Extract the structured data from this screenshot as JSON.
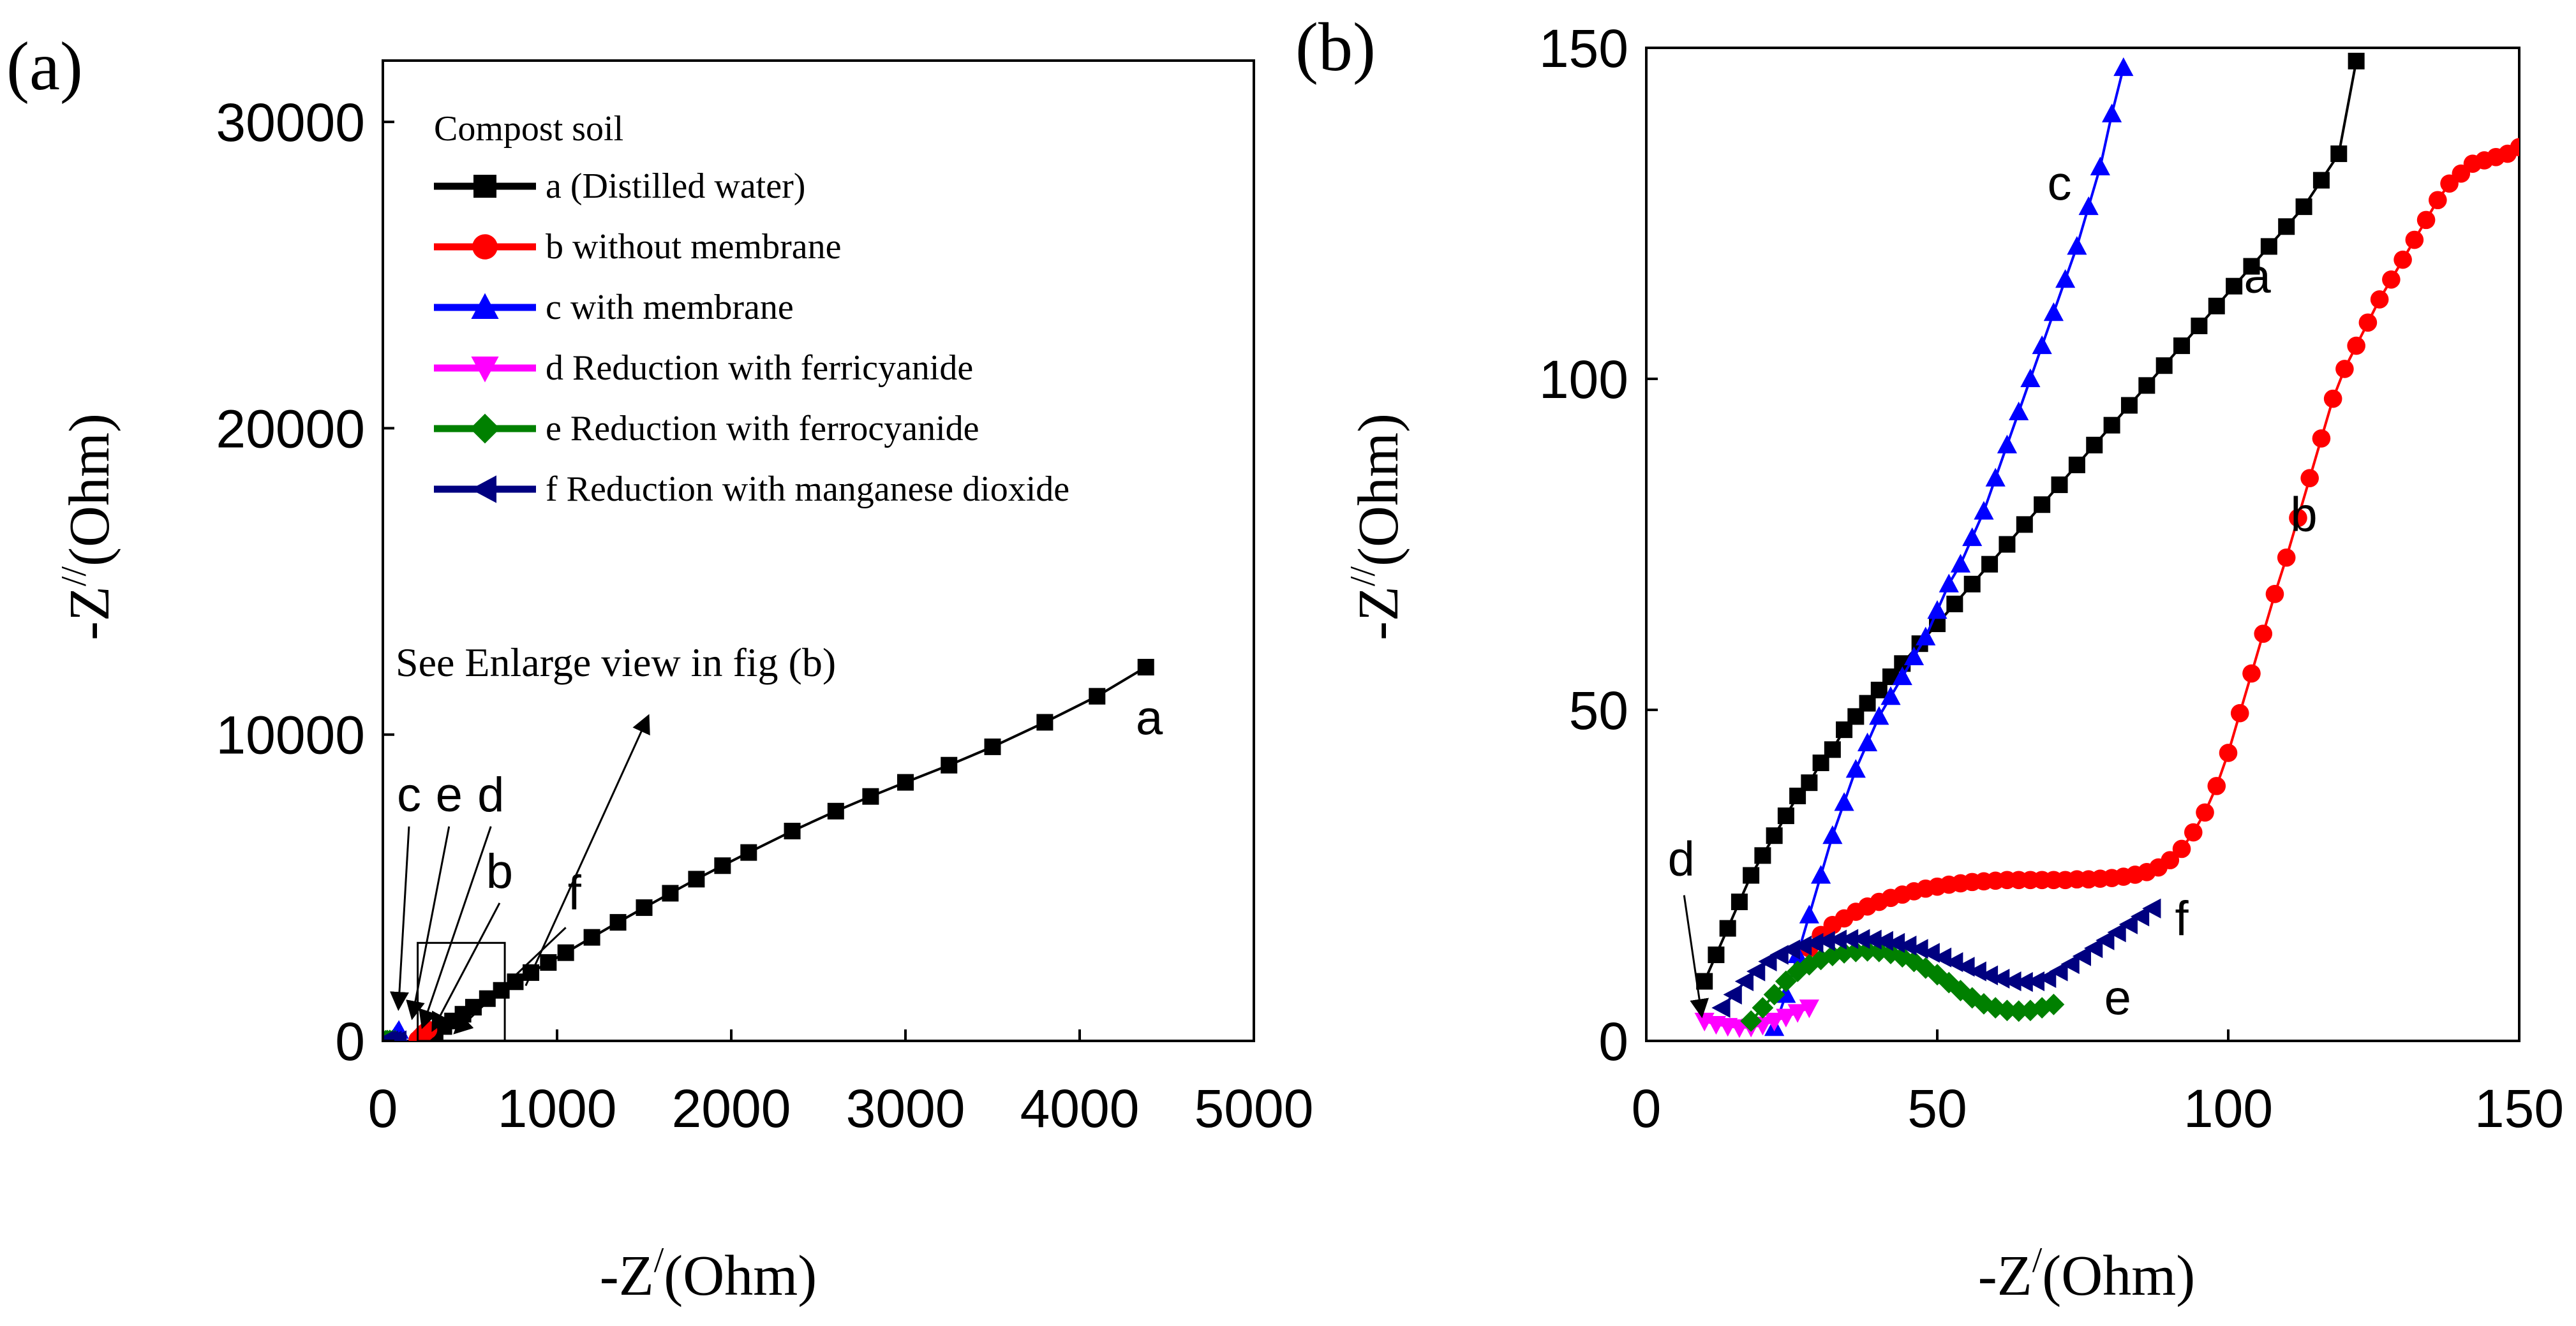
{
  "figure_caption": "",
  "colors": {
    "a": "#000000",
    "b": "#ff0000",
    "c": "#0000ff",
    "d": "#ff00ff",
    "e": "#008000",
    "f": "#000080"
  },
  "chart_data": [
    {
      "panel": "(a)",
      "type": "scatter",
      "title": "",
      "xlabel": "-Z",
      "xlabel_sup": "/",
      "xlabel_unit": "(Ohm)",
      "ylabel": "-Z",
      "ylabel_sup": "//",
      "ylabel_unit": "(Ohm)",
      "xlim": [
        0,
        5000
      ],
      "ylim": [
        0,
        32000
      ],
      "xticks": [
        0,
        1000,
        2000,
        3000,
        4000,
        5000
      ],
      "yticks": [
        0,
        10000,
        20000,
        30000
      ],
      "xtick_labels": [
        "0",
        "1000",
        "2000",
        "3000",
        "4000",
        "5000"
      ],
      "ytick_labels": [
        "0",
        "10000",
        "20000",
        "30000"
      ],
      "legend_title": "Compost soil",
      "legend_position": "top-left",
      "series": [
        {
          "key": "a",
          "name": "a (Distilled water)",
          "marker": "square",
          "x": [
            260,
            300,
            350,
            400,
            460,
            520,
            600,
            680,
            760,
            850,
            950,
            1050,
            1200,
            1350,
            1500,
            1650,
            1800,
            1950,
            2100,
            2350,
            2600,
            2800,
            3000,
            3250,
            3500,
            3800,
            4100,
            4380
          ],
          "y": [
            150,
            300,
            470,
            650,
            870,
            1100,
            1380,
            1650,
            1930,
            2230,
            2560,
            2880,
            3380,
            3870,
            4350,
            4820,
            5280,
            5720,
            6150,
            6850,
            7500,
            7980,
            8440,
            9000,
            9600,
            10400,
            11250,
            12200
          ]
        },
        {
          "key": "b",
          "name": "b without membrane",
          "marker": "circle",
          "x": [
            200,
            215,
            230,
            245,
            260
          ],
          "y": [
            40,
            120,
            210,
            290,
            360
          ]
        },
        {
          "key": "c",
          "name": "c with membrane",
          "marker": "triangle-up",
          "x": [
            60,
            68,
            76,
            84,
            92
          ],
          "y": [
            60,
            130,
            200,
            270,
            340
          ]
        },
        {
          "key": "d",
          "name": "d Reduction with ferricyanide",
          "marker": "triangle-down",
          "x": [
            10,
            14,
            18,
            22,
            26
          ],
          "y": [
            2,
            4,
            3,
            2,
            4
          ]
        },
        {
          "key": "e",
          "name": "e Reduction with ferrocyanide",
          "marker": "diamond",
          "x": [
            15,
            25,
            40,
            55,
            70
          ],
          "y": [
            5,
            12,
            14,
            8,
            5
          ]
        },
        {
          "key": "f",
          "name": "f Reduction with manganese dioxide",
          "marker": "triangle-left",
          "x": [
            12,
            25,
            40,
            60,
            88
          ],
          "y": [
            5,
            14,
            15,
            10,
            20
          ]
        }
      ],
      "annotations": {
        "enlarge_text": "See Enlarge view in fig (b)",
        "curve_labels": [
          {
            "text": "a",
            "x": 4400,
            "y": 10000
          },
          {
            "text": "c",
            "x": 150,
            "y": 7500
          },
          {
            "text": "e",
            "x": 380,
            "y": 7500
          },
          {
            "text": "d",
            "x": 620,
            "y": 7500
          },
          {
            "text": "b",
            "x": 670,
            "y": 5000
          },
          {
            "text": "f",
            "x": 1100,
            "y": 4300
          }
        ],
        "inset_box": {
          "x0": 200,
          "x1": 700,
          "y0": 0,
          "y1": 3200
        }
      }
    },
    {
      "panel": "(b)",
      "type": "scatter",
      "title": "",
      "xlabel": "-Z",
      "xlabel_sup": "/",
      "xlabel_unit": "(Ohm)",
      "ylabel": "-Z",
      "ylabel_sup": "//",
      "ylabel_unit": "(Ohm)",
      "xlim": [
        0,
        150
      ],
      "ylim": [
        0,
        150
      ],
      "xticks": [
        0,
        50,
        100,
        150
      ],
      "yticks": [
        0,
        50,
        100,
        150
      ],
      "xtick_labels": [
        "0",
        "50",
        "100",
        "150"
      ],
      "ytick_labels": [
        "0",
        "50",
        "100",
        "150"
      ],
      "series": [
        {
          "key": "a",
          "marker": "square",
          "x": [
            10,
            12,
            14,
            16,
            18,
            20,
            22,
            24,
            26,
            28,
            30,
            32,
            34,
            36,
            38,
            40,
            42,
            44,
            47,
            50,
            53,
            56,
            59,
            62,
            65,
            68,
            71,
            74,
            77,
            80,
            83,
            86,
            89,
            92,
            95,
            98,
            101,
            104,
            107,
            110,
            113,
            116,
            119,
            122
          ],
          "y": [
            9,
            13,
            17,
            21,
            25,
            28,
            31,
            34,
            37,
            39,
            42,
            44,
            47,
            49,
            51,
            53,
            55,
            57,
            60,
            63,
            66,
            69,
            72,
            75,
            78,
            81,
            84,
            87,
            90,
            93,
            96,
            99,
            102,
            105,
            108,
            111,
            114,
            117,
            120,
            123,
            126,
            130,
            134,
            148
          ]
        },
        {
          "key": "b",
          "marker": "circle",
          "x": [
            28,
            30,
            32,
            34,
            36,
            38,
            40,
            42,
            44,
            46,
            48,
            50,
            52,
            54,
            56,
            58,
            60,
            62,
            64,
            66,
            68,
            70,
            72,
            74,
            76,
            78,
            80,
            82,
            84,
            86,
            88,
            90,
            92,
            94,
            96,
            98,
            100,
            102,
            104,
            106,
            108,
            110,
            112,
            114,
            116,
            118,
            120,
            122,
            124,
            126,
            128,
            130,
            132,
            134,
            136,
            138,
            140,
            142,
            144,
            146,
            148,
            150
          ],
          "y": [
            14,
            16,
            17.5,
            18.5,
            19.5,
            20.3,
            21,
            21.6,
            22.1,
            22.6,
            23,
            23.3,
            23.6,
            23.8,
            24,
            24.1,
            24.2,
            24.3,
            24.3,
            24.3,
            24.3,
            24.3,
            24.3,
            24.4,
            24.4,
            24.5,
            24.6,
            24.8,
            25.1,
            25.5,
            26.2,
            27.3,
            29,
            31.5,
            34.5,
            38.5,
            43.5,
            49.5,
            55.5,
            61.5,
            67.5,
            73,
            79,
            85,
            91,
            97,
            101.5,
            105,
            108.5,
            112,
            115,
            118,
            121,
            124,
            127,
            129.5,
            131,
            132.5,
            133,
            133.5,
            134,
            135
          ]
        },
        {
          "key": "c",
          "marker": "triangle-up",
          "x": [
            22,
            24,
            26,
            28,
            30,
            32,
            34,
            36,
            38,
            40,
            42,
            44,
            46,
            48,
            50,
            52,
            54,
            56,
            58,
            60,
            62,
            64,
            66,
            68,
            70,
            72,
            74,
            76,
            78,
            80,
            82
          ],
          "y": [
            2,
            7,
            13,
            19,
            25,
            31,
            36,
            41,
            45,
            49,
            52,
            55,
            58,
            61,
            65,
            69,
            72,
            76,
            80,
            85,
            90,
            95,
            100,
            105,
            110,
            115,
            120,
            126,
            132,
            140,
            147
          ]
        },
        {
          "key": "d",
          "marker": "triangle-down",
          "x": [
            10,
            12,
            14,
            16,
            18,
            20,
            22,
            24,
            26,
            28
          ],
          "y": [
            3,
            2.5,
            2.2,
            2,
            2.1,
            2.4,
            3,
            3.6,
            4.3,
            5
          ]
        },
        {
          "key": "e",
          "marker": "diamond",
          "x": [
            18,
            20,
            22,
            24,
            26,
            28,
            30,
            32,
            34,
            36,
            38,
            40,
            42,
            44,
            46,
            48,
            50,
            52,
            54,
            56,
            58,
            60,
            62,
            64,
            66,
            68,
            70
          ],
          "y": [
            3,
            5,
            7,
            9,
            10.5,
            11.5,
            12.3,
            12.9,
            13.3,
            13.5,
            13.6,
            13.5,
            13.2,
            12.7,
            12,
            11,
            10,
            8.8,
            7.6,
            6.5,
            5.6,
            5,
            4.6,
            4.5,
            4.6,
            5,
            5.5
          ]
        },
        {
          "key": "f",
          "marker": "triangle-left",
          "x": [
            13,
            15,
            17,
            19,
            21,
            23,
            25,
            27,
            29,
            31,
            33,
            35,
            37,
            39,
            41,
            43,
            45,
            47,
            49,
            51,
            53,
            55,
            57,
            59,
            61,
            63,
            65,
            67,
            69,
            71,
            73,
            75,
            77,
            79,
            81,
            83,
            85,
            87
          ],
          "y": [
            5,
            7,
            9,
            10.5,
            12,
            13,
            13.8,
            14.4,
            14.8,
            15.1,
            15.3,
            15.4,
            15.4,
            15.3,
            15.1,
            14.8,
            14.4,
            13.9,
            13.3,
            12.6,
            11.9,
            11.2,
            10.5,
            9.9,
            9.4,
            9,
            8.9,
            9,
            9.5,
            10.5,
            11.6,
            12.8,
            14,
            15.2,
            16.4,
            17.6,
            18.8,
            20
          ]
        }
      ],
      "annotations": {
        "curve_labels": [
          {
            "text": "c",
            "x": 71,
            "y": 127
          },
          {
            "text": "a",
            "x": 105,
            "y": 113
          },
          {
            "text": "b",
            "x": 113,
            "y": 77
          },
          {
            "text": "d",
            "x": 6,
            "y": 25
          },
          {
            "text": "f",
            "x": 92,
            "y": 16
          },
          {
            "text": "e",
            "x": 81,
            "y": 4
          }
        ]
      }
    }
  ]
}
